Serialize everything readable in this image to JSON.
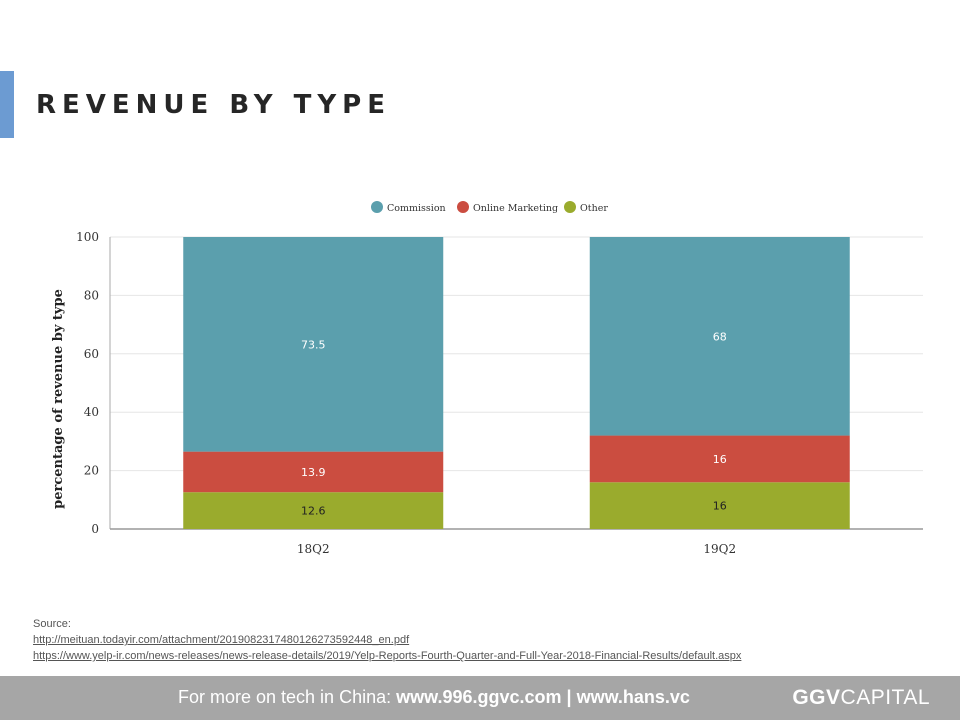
{
  "slide": {
    "title": "REVENUE BY TYPE"
  },
  "chart_data": {
    "type": "bar",
    "stacked": true,
    "categories": [
      "18Q2",
      "19Q2"
    ],
    "series": [
      {
        "name": "Commission",
        "values": [
          73.5,
          68
        ],
        "color": "#5b9fad"
      },
      {
        "name": "Online Marketing",
        "values": [
          13.9,
          16
        ],
        "color": "#cb4d40"
      },
      {
        "name": "Other",
        "values": [
          12.6,
          16
        ],
        "color": "#9aab2d"
      }
    ],
    "ylabel": "percentage of revenue by type",
    "xlabel": "",
    "ylim": [
      0,
      100
    ],
    "yticks": [
      0,
      20,
      40,
      60,
      80,
      100
    ],
    "grid": true,
    "legend": "top-center"
  },
  "source": {
    "label": "Source:",
    "links": [
      "http://meituan.todayir.com/attachment/2019082317480126273592448_en.pdf",
      "https://www.yelp-ir.com/news-releases/news-release-details/2019/Yelp-Reports-Fourth-Quarter-and-Full-Year-2018-Financial-Results/default.aspx"
    ]
  },
  "footer": {
    "prefix": "For more on tech in China: ",
    "link1": "www.996.ggvc.com",
    "separator": " | ",
    "link2": "www.hans.vc",
    "logo_strong": "GGV",
    "logo_light": "CAPITAL"
  }
}
